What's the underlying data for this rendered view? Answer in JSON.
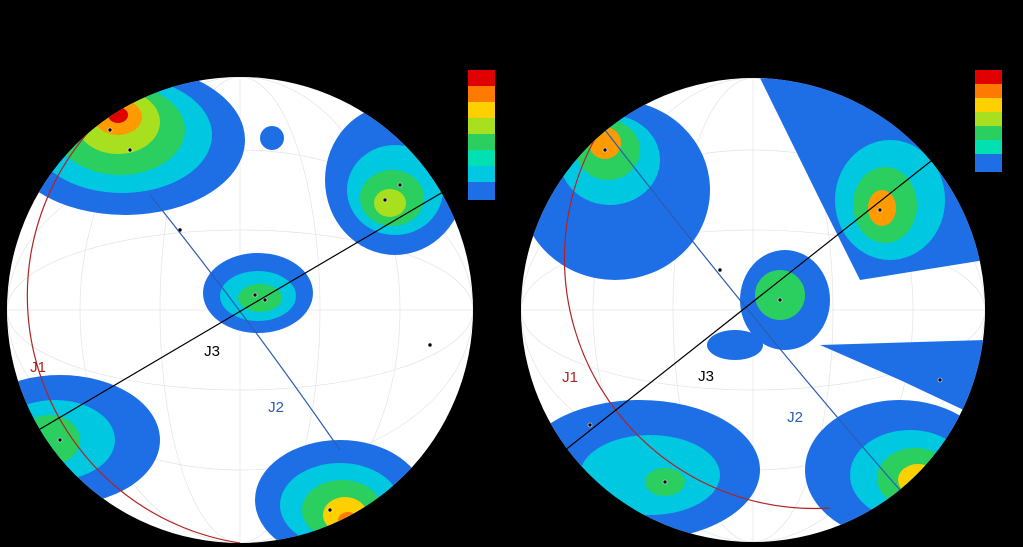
{
  "nets": [
    {
      "j1": "J1",
      "j2": "J2",
      "j3": "J3"
    },
    {
      "j1": "J1",
      "j2": "J2",
      "j3": "J3"
    }
  ]
}
